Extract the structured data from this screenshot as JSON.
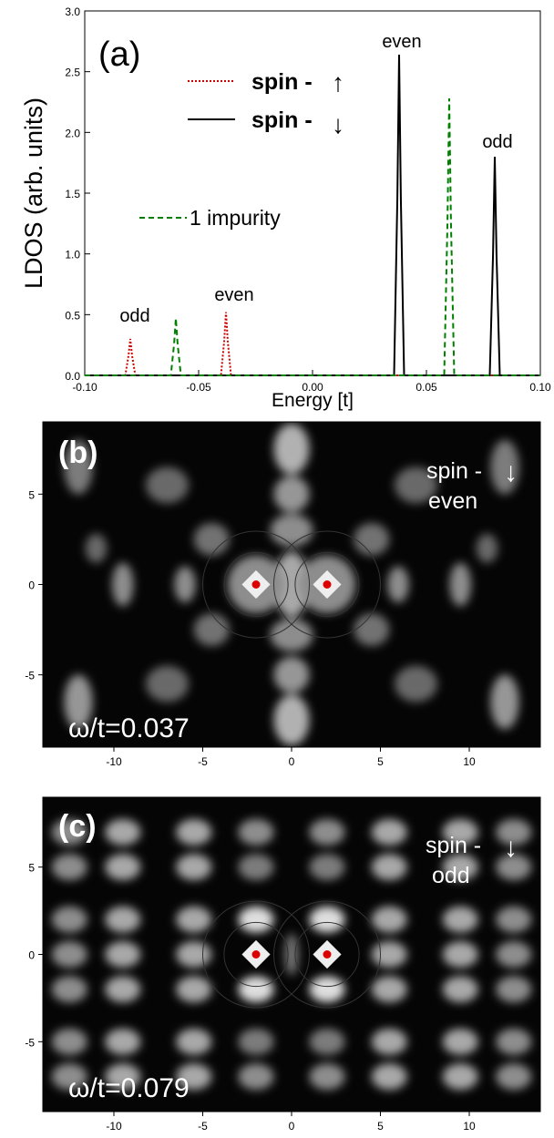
{
  "chart_data": [
    {
      "type": "line",
      "panel_label": "(a)",
      "xlabel": "Energy [t]",
      "ylabel": "LDOS (arb. units)",
      "xlim": [
        -0.1,
        0.1
      ],
      "ylim": [
        0,
        3.0
      ],
      "xticks": [
        "-0.10",
        "-0.05",
        "0.00",
        "0.05",
        "0.10"
      ],
      "yticks": [
        "0.0",
        "0.5",
        "1.0",
        "1.5",
        "2.0",
        "2.5",
        "3.0"
      ],
      "legend": [
        {
          "label": "spin -",
          "arrow": "↑",
          "color": "#cc0000",
          "dash": "dotted"
        },
        {
          "label": "spin -",
          "arrow": "↓",
          "color": "#000000",
          "dash": "solid"
        },
        {
          "label": "1 impurity",
          "color": "#008000",
          "dash": "dashed"
        }
      ],
      "series": [
        {
          "color": "#cc0000",
          "dash": "dotted",
          "peaks": [
            {
              "x": -0.08,
              "y": 0.3
            },
            {
              "x": -0.038,
              "y": 0.52
            }
          ]
        },
        {
          "color": "#000000",
          "dash": "solid",
          "peaks": [
            {
              "x": 0.038,
              "y": 2.64
            },
            {
              "x": 0.08,
              "y": 1.8
            }
          ]
        },
        {
          "color": "#008000",
          "dash": "dashed",
          "peaks": [
            {
              "x": -0.06,
              "y": 0.47
            },
            {
              "x": 0.06,
              "y": 2.28
            }
          ]
        }
      ],
      "annotations": [
        {
          "text": "odd",
          "x": -0.081,
          "y": 0.55
        },
        {
          "text": "even",
          "x": -0.036,
          "y": 0.72
        },
        {
          "text": "even",
          "x": 0.037,
          "y": 2.82
        },
        {
          "text": "odd",
          "x": 0.08,
          "y": 2.0
        }
      ]
    },
    {
      "type": "heatmap",
      "panel_label": "(b)",
      "colormap": "grayscale",
      "xlim": [
        -14,
        14
      ],
      "ylim": [
        -9,
        9
      ],
      "xticks": [
        "-10",
        "-5",
        "0",
        "5",
        "10"
      ],
      "yticks": [
        "5",
        "0",
        "-5"
      ],
      "spin_label": "spin -",
      "spin_arrow": "↓",
      "parity": "even",
      "omega_label": "ω/t=0.037",
      "impurities": [
        {
          "x": -2,
          "y": 0
        },
        {
          "x": 2,
          "y": 0
        }
      ],
      "impurity_color": "#dd0000"
    },
    {
      "type": "heatmap",
      "panel_label": "(c)",
      "colormap": "grayscale",
      "xlim": [
        -14,
        14
      ],
      "ylim": [
        -9,
        9
      ],
      "xticks": [
        "-10",
        "-5",
        "0",
        "5",
        "10"
      ],
      "yticks": [
        "5",
        "0",
        "-5"
      ],
      "spin_label": "spin -",
      "spin_arrow": "↓",
      "parity": "odd",
      "omega_label": "ω/t=0.079",
      "impurities": [
        {
          "x": -2,
          "y": 0
        },
        {
          "x": 2,
          "y": 0
        }
      ],
      "impurity_color": "#dd0000"
    }
  ]
}
